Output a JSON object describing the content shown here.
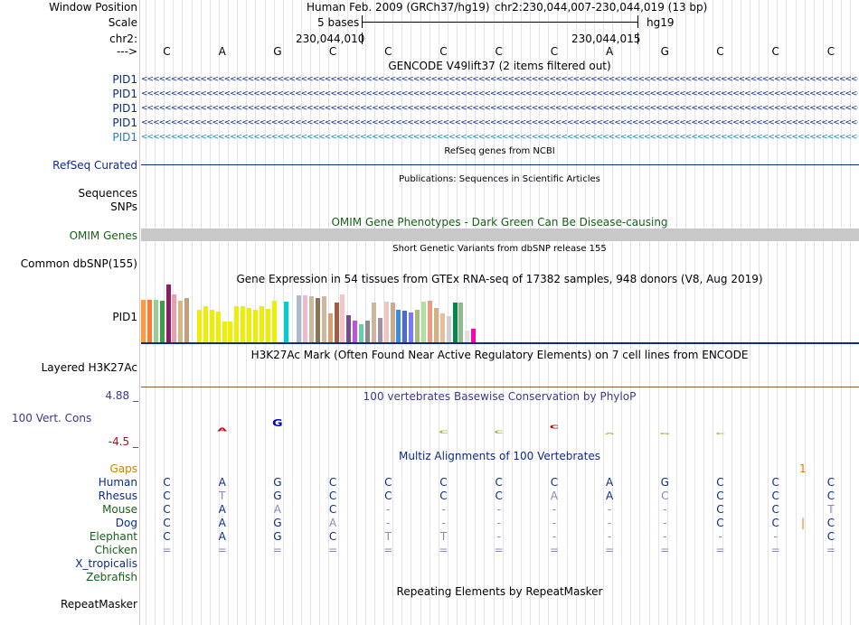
{
  "header": {
    "window_position_label": "Window Position",
    "assembly": "Human Feb. 2009 (GRCh37/hg19)",
    "position": "chr2:230,044,007-230,044,019 (13 bp)",
    "scale_label": "Scale",
    "scale_text": "5 bases",
    "scale_db": "hg19",
    "chrom_label": "chr2:",
    "coord_left": "230,044,010",
    "coord_right": "230,044,015",
    "strand_label": "--->",
    "bases": [
      "C",
      "A",
      "G",
      "C",
      "C",
      "C",
      "C",
      "C",
      "A",
      "G",
      "C",
      "C",
      "C"
    ]
  },
  "gencode": {
    "title": "GENCODE V49lift37 (2 items filtered out)",
    "items": [
      {
        "label": "PID1",
        "color": "#0b2a8a"
      },
      {
        "label": "PID1",
        "color": "#0b2a8a"
      },
      {
        "label": "PID1",
        "color": "#0b2a8a"
      },
      {
        "label": "PID1",
        "color": "#0b2a8a"
      },
      {
        "label": "PID1",
        "color": "#1a83b4"
      }
    ],
    "strand_glyphs": "<<<<<<<<<<<<<<<<<<<<<<<<<<<<<<<<<<<<<<<<<<<<<<<<<<<<<<<<<<<<<<<<<<<<<<<<<<<<<<<<<<<<<<<<<<<<<<<<<<<<<<<<<<<<<<<<<<<<<<<<<<<<<<<<<<<<<<<<<<<<<<<<<"
  },
  "refseq": {
    "title": "RefSeq genes from NCBI",
    "label": "RefSeq Curated"
  },
  "publications": {
    "title": "Publications: Sequences in Scientific Articles",
    "label_seq": "Sequences",
    "label_snps": "SNPs"
  },
  "omim": {
    "title": "OMIM Gene Phenotypes - Dark Green Can Be Disease-causing",
    "label": "OMIM Genes"
  },
  "dbsnp": {
    "title": "Short Genetic Variants from dbSNP release 155",
    "label": "Common dbSNP(155)"
  },
  "gtex": {
    "title": "Gene Expression in 54 tissues from GTEx RNA-seq of 17382 samples, 948 donors (V8, Aug 2019)",
    "label": "PID1",
    "values": [
      0.74,
      0.74,
      0.74,
      0.72,
      1.0,
      0.83,
      0.72,
      0.77,
      0,
      0.57,
      0.63,
      0.57,
      0.53,
      0.36,
      0.36,
      0.63,
      0.62,
      0.6,
      0.57,
      0.62,
      0.58,
      0.72,
      0,
      0.7,
      0,
      0.82,
      0.82,
      0.8,
      0.77,
      0.8,
      0.5,
      0.68,
      0.83,
      0.47,
      0.38,
      0.32,
      0.37,
      0.68,
      0.42,
      0.7,
      0.68,
      0.57,
      0.55,
      0.51,
      0.56,
      0.71,
      0.72,
      0.59,
      0.5,
      0.46,
      0.69,
      0.69,
      0.2,
      0.24
    ],
    "colors": [
      "#FF9A3F",
      "#FF7A2D",
      "#9BCD9B",
      "#3C9F40",
      "#8B1C62",
      "#E3A0AF",
      "#D6B87E",
      "#C09F7D",
      "#FFFFFF",
      "#EEEE00",
      "#EEEE00",
      "#EEEE00",
      "#EEEE00",
      "#EEEE00",
      "#EEEE00",
      "#EEEE00",
      "#EEEE00",
      "#EEEE00",
      "#EEEE00",
      "#EEEE00",
      "#EEEE00",
      "#EEEE00",
      "#FFFFFF",
      "#00CDCD",
      "#FFFFFF",
      "#AABBCC",
      "#EEBBCC",
      "#CDB79E",
      "#8B7355",
      "#CDB79E",
      "#D8A070",
      "#9F5E43",
      "#F3C5CA",
      "#7A4A8E",
      "#BB55DD",
      "#66CDAA",
      "#8B8989",
      "#CDB5A0",
      "#A090A0",
      "#EEC5C0",
      "#C7AB8D",
      "#3B8BE0",
      "#4F6ACE",
      "#7777FF",
      "#AABB77",
      "#B0E0A0",
      "#EE9A80",
      "#D6B07E",
      "#EEBB99",
      "#D0D0D0",
      "#008844",
      "#8FBC8F",
      "#E0E0E0",
      "#FF00BB"
    ]
  },
  "h3k27ac": {
    "title": "H3K27Ac Mark (Often Found Near Active Regulatory Elements) on 7 cell lines from ENCODE",
    "label": "Layered H3K27Ac"
  },
  "cons": {
    "title": "100 vertebrates Basewise Conservation by PhyloP",
    "label": "100 Vert. Cons",
    "max": "4.88 _",
    "min": "-4.5 _",
    "scores": [
      0,
      1.4,
      2.6,
      0,
      0,
      1.0,
      1.1,
      -1.4,
      0.5,
      0.5,
      0.5,
      0,
      0
    ]
  },
  "multiz": {
    "title": "Multiz Alignments of 100 Vertebrates",
    "gaps_label": "Gaps",
    "gaps_count": "1",
    "species": [
      {
        "name": "Human",
        "color": "#0b2a8a",
        "bases": [
          "C",
          "A",
          "G",
          "C",
          "C",
          "C",
          "C",
          "C",
          "A",
          "G",
          "C",
          "C",
          "C"
        ],
        "extra": ""
      },
      {
        "name": "Rhesus",
        "color": "#0b2a8a",
        "bases": [
          "C",
          "T",
          "G",
          "C",
          "C",
          "C",
          "C",
          "A",
          "A",
          "C",
          "C",
          "C",
          "C"
        ],
        "extra": ""
      },
      {
        "name": "Mouse",
        "color": "#186018",
        "bases": [
          "C",
          "A",
          "A",
          "C",
          "-",
          "-",
          "-",
          "-",
          "-",
          "-",
          "C",
          "C",
          "T"
        ],
        "extra": ""
      },
      {
        "name": "Dog",
        "color": "#0b2a8a",
        "bases": [
          "C",
          "A",
          "G",
          "A",
          "-",
          "-",
          "-",
          "-",
          "-",
          "-",
          "C",
          "C",
          "C"
        ],
        "extra": "|"
      },
      {
        "name": "Elephant",
        "color": "#186018",
        "bases": [
          "C",
          "A",
          "G",
          "C",
          "T",
          "T",
          "-",
          "-",
          "-",
          "-",
          "-",
          "-",
          "C"
        ],
        "extra": ""
      },
      {
        "name": "Chicken",
        "color": "#186018",
        "bases": [
          "=",
          "=",
          "=",
          "=",
          "=",
          "=",
          "=",
          "=",
          "=",
          "=",
          "=",
          "=",
          "="
        ],
        "extra": ""
      },
      {
        "name": "X_tropicalis",
        "color": "#0b2a8a",
        "bases": [],
        "extra": ""
      },
      {
        "name": "Zebrafish",
        "color": "#186018",
        "bases": [],
        "extra": ""
      }
    ]
  },
  "repeatmasker": {
    "title": "Repeating Elements by RepeatMasker",
    "label": "RepeatMasker"
  },
  "colors": {
    "track_blue": "#0b2a8a",
    "omim_green": "#186018",
    "gaps_orange": "#d08000",
    "cons_blue": "#3a3a8a",
    "min_red": "#8b1a1a",
    "omim_bar": "#c8c8c8"
  }
}
